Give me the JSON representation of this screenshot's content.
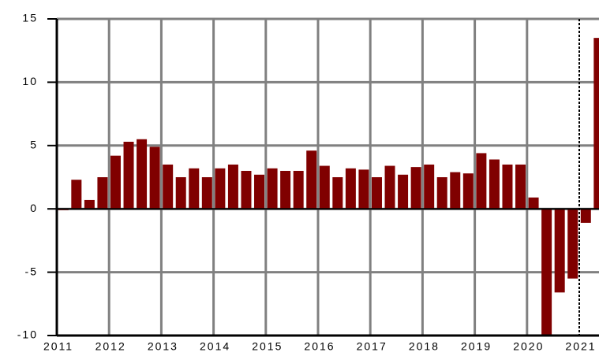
{
  "chart_data": {
    "type": "bar",
    "categories": [
      "2011",
      null,
      null,
      null,
      "2012",
      null,
      null,
      null,
      "2013",
      null,
      null,
      null,
      "2014",
      null,
      null,
      null,
      "2015",
      null,
      null,
      null,
      "2016",
      null,
      null,
      null,
      "2017",
      null,
      null,
      null,
      "2018",
      null,
      null,
      null,
      "2019",
      null,
      null,
      null,
      "2020",
      null,
      null,
      null,
      "2021",
      null
    ],
    "values": [
      -0.1,
      2.3,
      0.7,
      2.5,
      4.2,
      5.3,
      5.5,
      4.9,
      3.5,
      2.5,
      3.2,
      2.5,
      3.2,
      3.5,
      3.0,
      2.7,
      3.2,
      3.0,
      3.0,
      4.6,
      3.4,
      2.5,
      3.2,
      3.1,
      2.5,
      3.4,
      2.7,
      3.3,
      3.5,
      2.5,
      2.9,
      2.8,
      4.4,
      3.9,
      3.5,
      3.5,
      0.9,
      -10.5,
      -6.6,
      -5.5,
      -1.1,
      13.5
    ],
    "color": "#800000",
    "ylim": [
      -10,
      15
    ],
    "yticks": [
      -10,
      -5,
      0,
      5,
      10,
      15
    ],
    "grid": true
  }
}
